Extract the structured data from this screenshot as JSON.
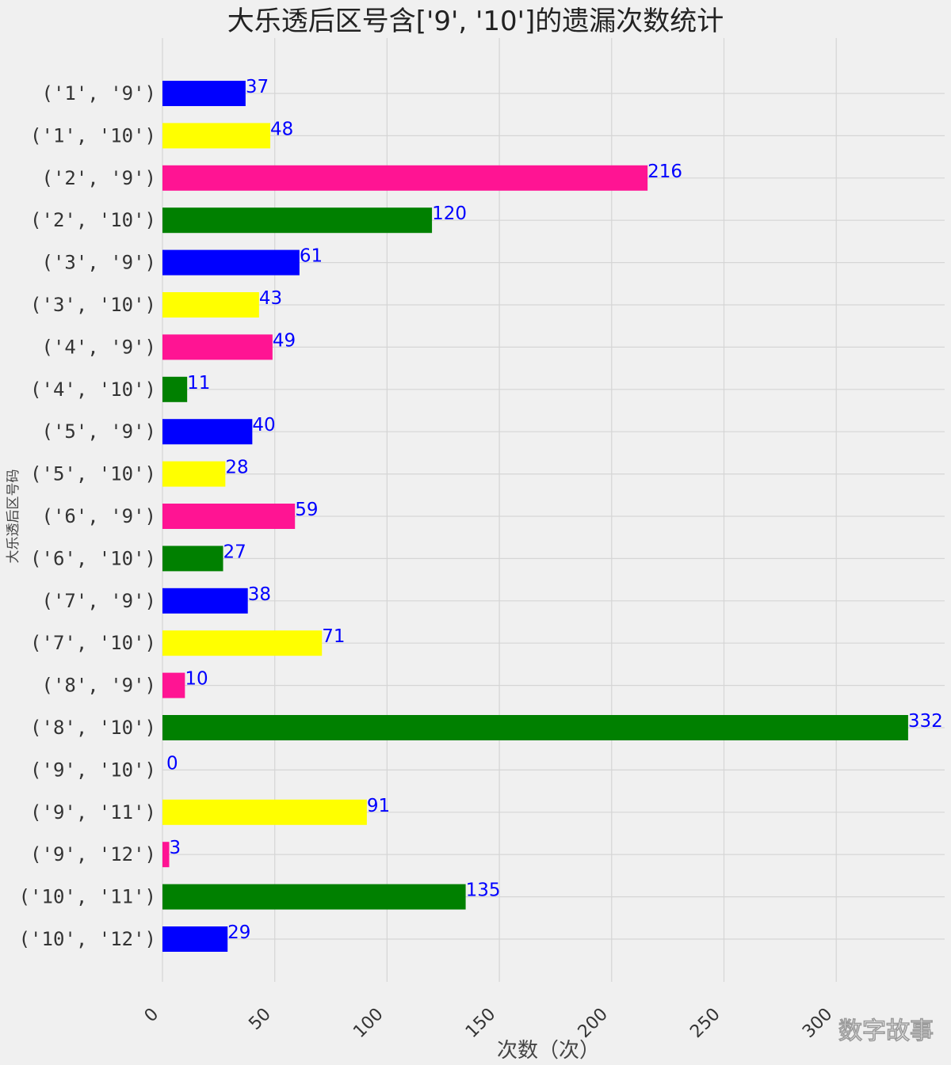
{
  "chart_data": {
    "type": "bar",
    "orientation": "horizontal",
    "title": "大乐透后区号含['9', '10']的遗漏次数统计",
    "xlabel": "次数（次）",
    "ylabel": "大乐透后区号码",
    "categories": [
      "('1', '9')",
      "('1', '10')",
      "('2', '9')",
      "('2', '10')",
      "('3', '9')",
      "('3', '10')",
      "('4', '9')",
      "('4', '10')",
      "('5', '9')",
      "('5', '10')",
      "('6', '9')",
      "('6', '10')",
      "('7', '9')",
      "('7', '10')",
      "('8', '9')",
      "('8', '10')",
      "('9', '10')",
      "('9', '11')",
      "('9', '12')",
      "('10', '11')",
      "('10', '12')"
    ],
    "values": [
      37,
      48,
      216,
      120,
      61,
      43,
      49,
      11,
      40,
      28,
      59,
      27,
      38,
      71,
      10,
      332,
      0,
      91,
      3,
      135,
      29
    ],
    "bar_colors": [
      "#0000ff",
      "#ffff00",
      "#ff1493",
      "#008000"
    ],
    "value_label_color": "#0000ff",
    "xticks": [
      0,
      50,
      100,
      150,
      200,
      250,
      300
    ],
    "xlim": [
      0,
      350
    ],
    "grid": true
  },
  "watermark": "数字故事"
}
